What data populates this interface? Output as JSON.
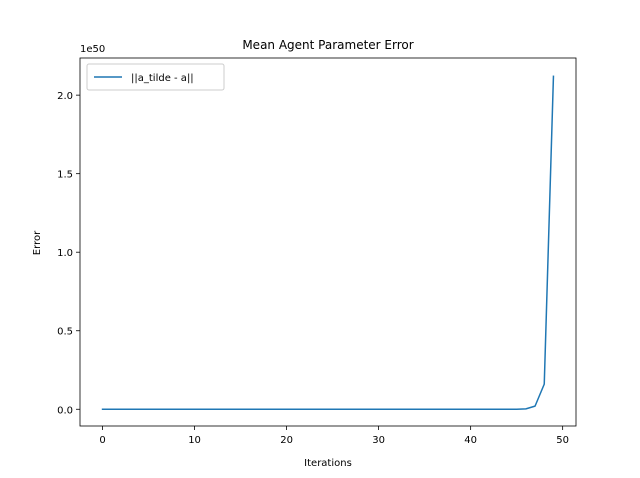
{
  "chart_data": {
    "type": "line",
    "title": "Mean Agent Parameter Error",
    "xlabel": "Iterations",
    "ylabel": "Error",
    "y_offset_label": "1e50",
    "y_scale_exponent": 50,
    "xlim": [
      -2.45,
      51.45
    ],
    "ylim": [
      -0.1065,
      2.2365
    ],
    "x_ticks": [
      0,
      10,
      20,
      30,
      40,
      50
    ],
    "x_tick_labels": [
      "0",
      "10",
      "20",
      "30",
      "40",
      "50"
    ],
    "y_ticks": [
      0.0,
      0.5,
      1.0,
      1.5,
      2.0
    ],
    "y_tick_labels": [
      "0.0",
      "0.5",
      "1.0",
      "1.5",
      "2.0"
    ],
    "grid": false,
    "legend_location": "upper left",
    "series": [
      {
        "name": "||a_tilde - a||",
        "color": "#1f77b4",
        "x": [
          0,
          1,
          2,
          3,
          4,
          5,
          6,
          7,
          8,
          9,
          10,
          11,
          12,
          13,
          14,
          15,
          16,
          17,
          18,
          19,
          20,
          21,
          22,
          23,
          24,
          25,
          26,
          27,
          28,
          29,
          30,
          31,
          32,
          33,
          34,
          35,
          36,
          37,
          38,
          39,
          40,
          41,
          42,
          43,
          44,
          45,
          46,
          47,
          48,
          49
        ],
        "y": [
          0,
          0,
          0,
          0,
          0,
          0,
          0,
          0,
          0,
          0,
          0,
          0,
          0,
          0,
          0,
          0,
          0,
          0,
          0,
          0,
          0,
          0,
          0,
          0,
          0,
          0,
          0,
          0,
          0,
          0,
          0,
          0,
          0,
          0,
          0,
          0,
          0,
          0,
          0,
          0,
          0,
          0,
          0,
          0,
          0,
          0.0002,
          0.0025,
          0.02,
          0.16,
          2.12
        ]
      }
    ]
  }
}
